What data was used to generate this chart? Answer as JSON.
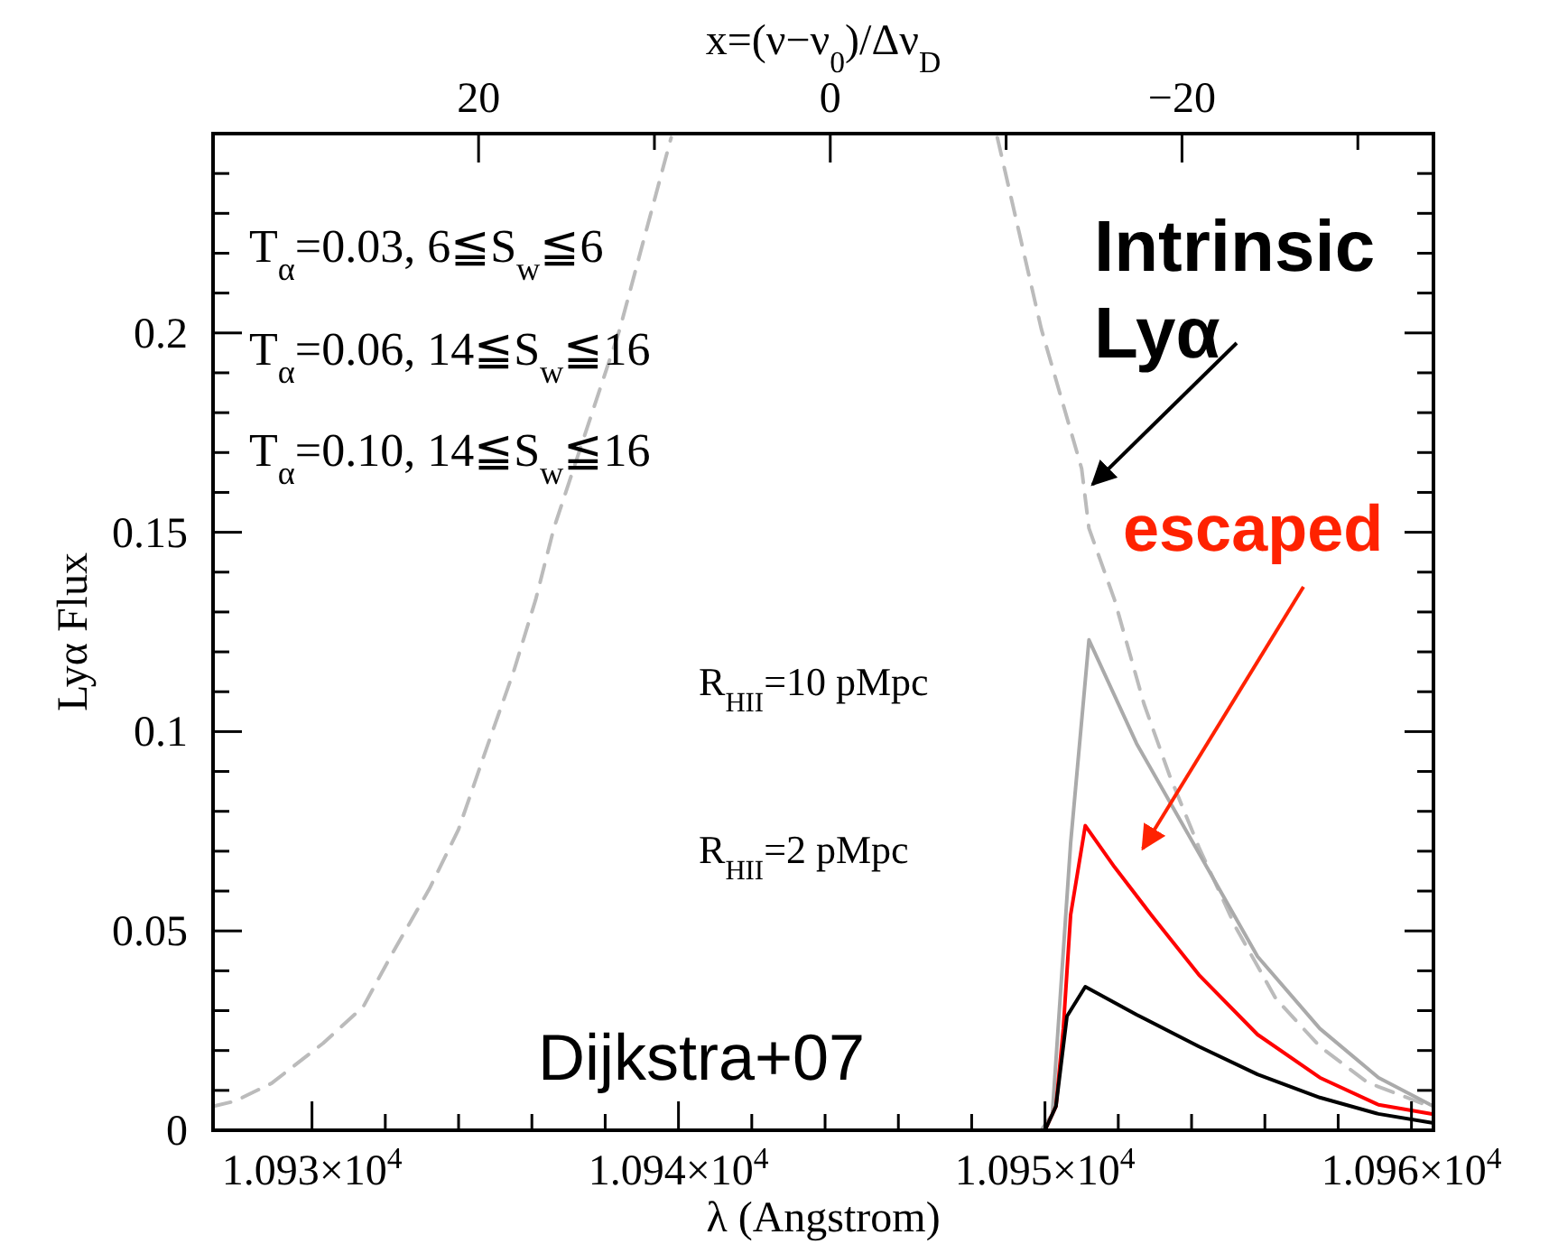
{
  "chart_data": {
    "type": "line",
    "xlabel": "λ (Angstrom)",
    "ylabel": "Lyα Flux",
    "x2label": "x=(ν−ν$_{0}$)/Δν$_{D}$",
    "xlim": [
      10927.3,
      10960.6
    ],
    "ylim": [
      0,
      0.25
    ],
    "xticks": [
      {
        "value": 10930,
        "label": "1.093×10$^{4}$"
      },
      {
        "value": 10932,
        "label": null
      },
      {
        "value": 10934,
        "label": null
      },
      {
        "value": 10936,
        "label": null
      },
      {
        "value": 10938,
        "label": null
      },
      {
        "value": 10940,
        "label": "1.094×10$^{4}$"
      },
      {
        "value": 10942,
        "label": null
      },
      {
        "value": 10944,
        "label": null
      },
      {
        "value": 10946,
        "label": null
      },
      {
        "value": 10948,
        "label": null
      },
      {
        "value": 10950,
        "label": "1.095×10$^{4}$"
      },
      {
        "value": 10952,
        "label": null
      },
      {
        "value": 10954,
        "label": null
      },
      {
        "value": 10956,
        "label": null
      },
      {
        "value": 10958,
        "label": null
      },
      {
        "value": 10960,
        "label": "1.096×10$^{4}$"
      }
    ],
    "yticks": [
      0,
      {
        "value": 0.01,
        "label": null
      },
      {
        "value": 0.02,
        "label": null
      },
      {
        "value": 0.03,
        "label": null
      },
      {
        "value": 0.04,
        "label": null
      },
      0.05,
      {
        "value": 0.06,
        "label": null
      },
      {
        "value": 0.07,
        "label": null
      },
      {
        "value": 0.08,
        "label": null
      },
      {
        "value": 0.09,
        "label": null
      },
      0.1,
      {
        "value": 0.11,
        "label": null
      },
      {
        "value": 0.12,
        "label": null
      },
      {
        "value": 0.13,
        "label": null
      },
      {
        "value": 0.14,
        "label": null
      },
      0.15,
      {
        "value": 0.16,
        "label": null
      },
      {
        "value": 0.17,
        "label": null
      },
      {
        "value": 0.18,
        "label": null
      },
      {
        "value": 0.19,
        "label": null
      },
      0.2,
      {
        "value": 0.21,
        "label": null
      },
      {
        "value": 0.22,
        "label": null
      },
      {
        "value": 0.23,
        "label": null
      },
      {
        "value": 0.24,
        "label": null
      }
    ],
    "x2lim": [
      35.1,
      -34.3
    ],
    "x2ticks": [
      20,
      {
        "value": 10,
        "label": null
      },
      0,
      {
        "value": -10,
        "label": null
      },
      -20,
      {
        "value": -30,
        "label": null
      }
    ],
    "grid": false,
    "marker": "none",
    "series": [
      {
        "color": "#bbbbbb",
        "line_style": "dashed",
        "x": [
          10927.3,
          10927.9,
          10928.9,
          10930.3,
          10931.4,
          10932.2,
          10933.2,
          10934.0,
          10934.8,
          10935.5,
          10936.1,
          10936.6,
          10938.4,
          10939.8,
          10944.1,
          10948.7,
          10949.9,
          10951.0,
          10951.2,
          10951.9,
          10952.7,
          10953.4,
          10954.2,
          10955.2,
          10956.3,
          10957.5,
          10958.8,
          10960.5
        ],
        "values": [
          0.006,
          0.0073,
          0.0118,
          0.0218,
          0.031,
          0.0445,
          0.0605,
          0.0755,
          0.0968,
          0.115,
          0.133,
          0.151,
          0.201,
          0.249,
          null,
          0.249,
          0.201,
          0.166,
          0.151,
          0.133,
          0.107,
          0.089,
          0.071,
          0.051,
          0.033,
          0.021,
          0.012,
          0.006
        ]
      },
      {
        "color": "#aaaaaa",
        "line_style": "solid",
        "x": [
          10949.9,
          10950.2,
          10950.7,
          10951.2,
          10952.5,
          10954.2,
          10955.8,
          10957.5,
          10959.1,
          10960.6
        ],
        "values": [
          0,
          0.004,
          0.072,
          0.123,
          0.097,
          0.0695,
          0.0436,
          0.0255,
          0.0132,
          0.006
        ]
      },
      {
        "color": "#ff0000",
        "line_style": "solid",
        "x": [
          10950.0,
          10950.3,
          10950.5,
          10950.7,
          10951.1,
          10951.9,
          10952.9,
          10954.2,
          10955.8,
          10957.5,
          10959.1,
          10960.6
        ],
        "values": [
          0,
          0.006,
          0.0255,
          0.054,
          0.0764,
          0.066,
          0.054,
          0.039,
          0.024,
          0.0132,
          0.0064,
          0.004
        ]
      },
      {
        "color": "#000000",
        "line_style": "solid",
        "x": [
          10950.0,
          10950.3,
          10950.6,
          10951.1,
          10952.5,
          10954.2,
          10955.8,
          10957.5,
          10959.1,
          10960.6
        ],
        "values": [
          0,
          0.006,
          0.0286,
          0.036,
          0.029,
          0.021,
          0.014,
          0.0082,
          0.0041,
          0.0018
        ]
      }
    ],
    "annotations": [
      "T$_{α}$=0.03,  6≦S$_{w}$≦6",
      "T$_{α}$=0.06,  14≦S$_{w}$≦16",
      "T$_{α}$=0.10,  14≦S$_{w}$≦16",
      {
        "text": "Intrinsic Lyα",
        "x": 10951.3,
        "y": 0.162
      },
      "escaped",
      "Dijkstra+07",
      "R$_{HII}$=10 pMpc",
      "R$_{HII}$=2 pMpc"
    ]
  }
}
